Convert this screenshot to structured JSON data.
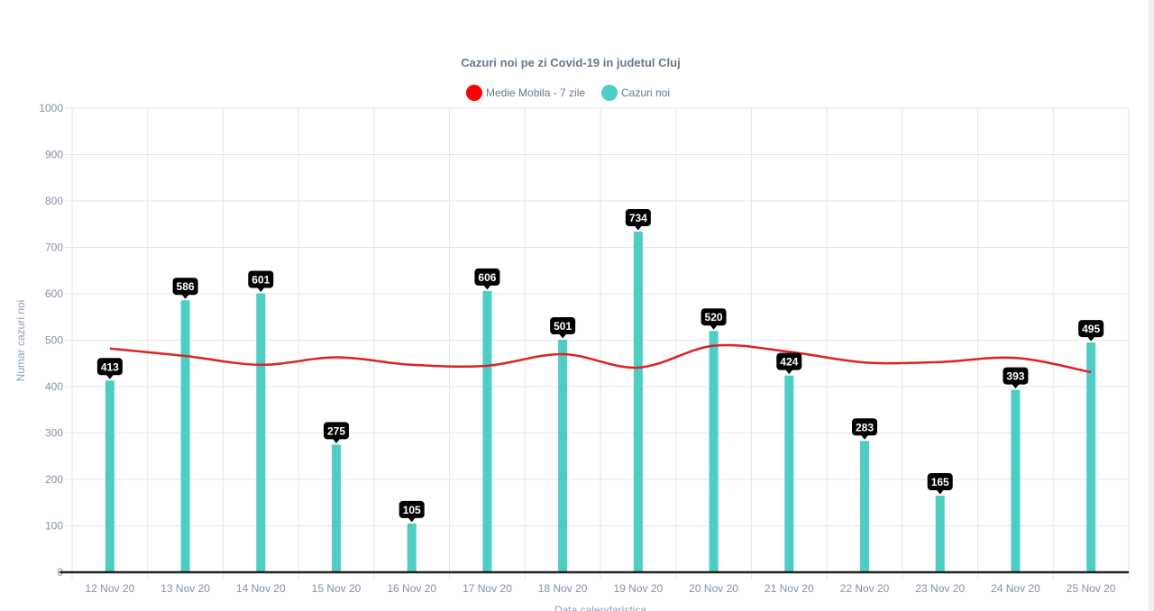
{
  "chart_data": {
    "type": "bar",
    "title": "Cazuri noi pe zi Covid-19 in judetul Cluj",
    "xlabel": "Data calendaristica",
    "ylabel": "Numar cazuri noi",
    "ylim": [
      0,
      1000
    ],
    "y_ticks": [
      "0",
      "100",
      "200",
      "300",
      "400",
      "500",
      "600",
      "700",
      "800",
      "900",
      "1000"
    ],
    "grid": true,
    "legend_position": "top-center",
    "categories": [
      "12 Nov 20",
      "13 Nov 20",
      "14 Nov 20",
      "15 Nov 20",
      "16 Nov 20",
      "17 Nov 20",
      "18 Nov 20",
      "19 Nov 20",
      "20 Nov 20",
      "21 Nov 20",
      "22 Nov 20",
      "23 Nov 20",
      "24 Nov 20",
      "25 Nov 20"
    ],
    "series": [
      {
        "name": "Medie Mobila - 7 zile",
        "type": "line",
        "color": "#ff0000",
        "line_color": "#dd2222",
        "values": [
          482,
          466,
          447,
          463,
          447,
          445,
          470,
          441,
          488,
          475,
          452,
          453,
          462,
          431
        ]
      },
      {
        "name": "Cazuri noi",
        "type": "bar",
        "color": "#4ecdc4",
        "values": [
          413,
          586,
          601,
          275,
          105,
          606,
          501,
          734,
          520,
          424,
          283,
          165,
          393,
          495
        ],
        "data_labels": [
          "413",
          "586",
          "601",
          "275",
          "105",
          "606",
          "501",
          "734",
          "520",
          "424",
          "283",
          "165",
          "393",
          "495"
        ]
      }
    ]
  }
}
